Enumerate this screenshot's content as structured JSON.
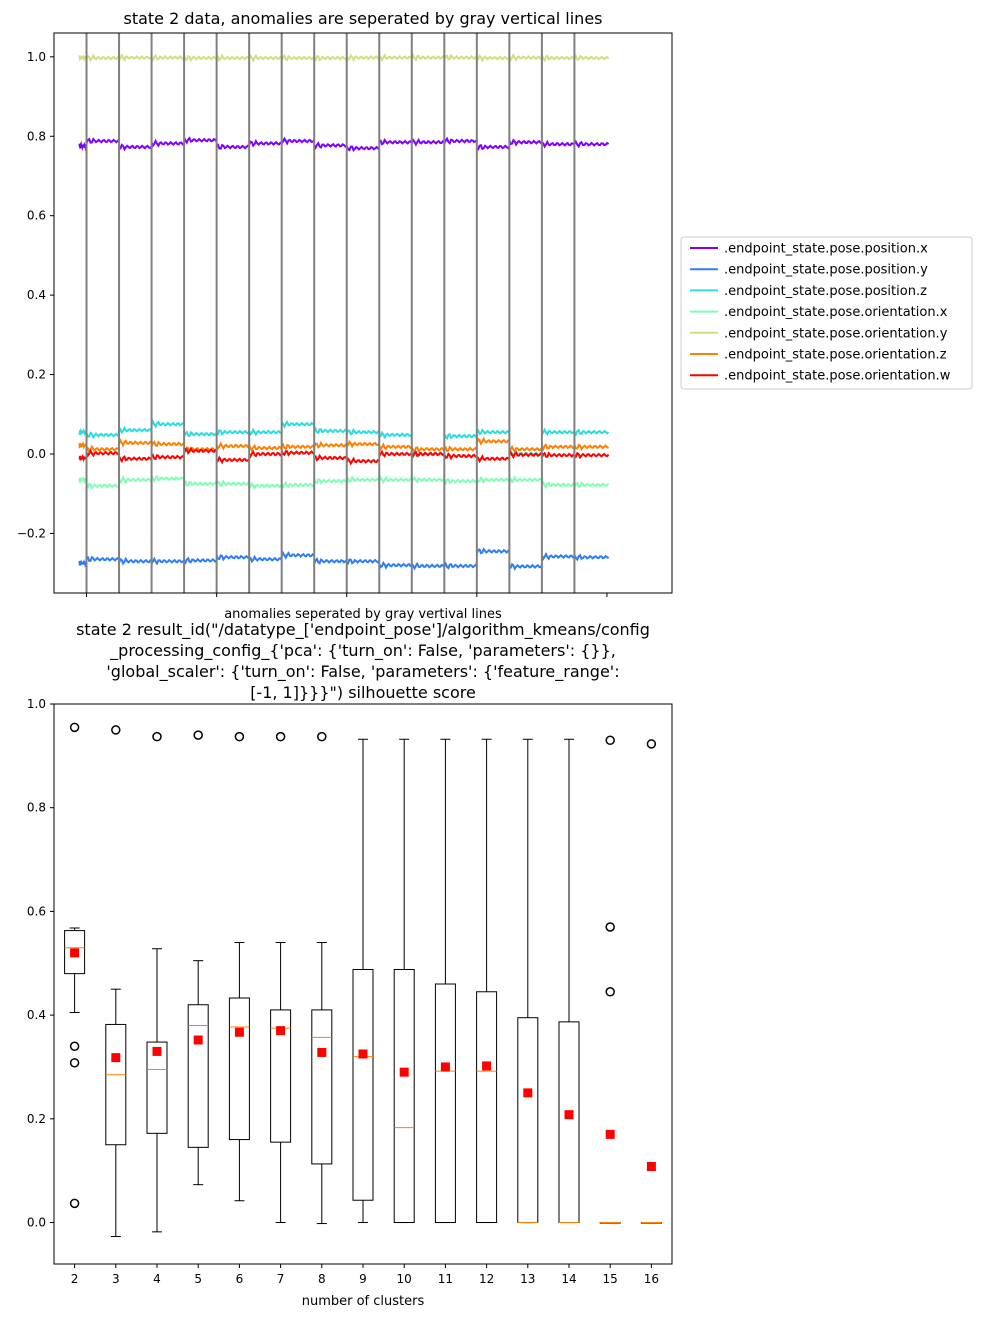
{
  "chart_data": [
    {
      "type": "line",
      "title": "state 2 data, anomalies are seperated by gray vertical lines",
      "xlabel": "anomalies seperated by gray vertival lines",
      "ylabel": "",
      "ylim": [
        -0.35,
        1.06
      ],
      "yticks": [
        -0.2,
        0.0,
        0.2,
        0.4,
        0.6,
        0.8,
        1.0
      ],
      "ytick_labels": [
        "−0.2",
        "0.0",
        "0.2",
        "0.4",
        "0.6",
        "0.8",
        "1.0"
      ],
      "x_range": [
        0,
        19
      ],
      "xticks": [
        1,
        5,
        9,
        13,
        17
      ],
      "separators": [
        1,
        2,
        3,
        4,
        5,
        6,
        7,
        8,
        9,
        10,
        11,
        12,
        13,
        14,
        15,
        16
      ],
      "legend_position": "outside-right",
      "grid": false,
      "segment_bounds": [
        0.78,
        1,
        2,
        3,
        4,
        5,
        6,
        7,
        8,
        9,
        10,
        11,
        12,
        13,
        14,
        15,
        16,
        17.05
      ],
      "series": [
        {
          "name": ".endpoint_state.pose.position.x",
          "color": "#8000ff",
          "segments": [
            0.775,
            0.788,
            0.773,
            0.782,
            0.79,
            0.773,
            0.782,
            0.788,
            0.777,
            0.77,
            0.785,
            0.785,
            0.788,
            0.773,
            0.785,
            0.78,
            0.78
          ]
        },
        {
          "name": ".endpoint_state.pose.position.y",
          "color": "#2c7ef7",
          "segments": [
            -0.275,
            -0.265,
            -0.27,
            -0.27,
            -0.268,
            -0.26,
            -0.265,
            -0.255,
            -0.27,
            -0.27,
            -0.28,
            -0.282,
            -0.282,
            -0.245,
            -0.283,
            -0.258,
            -0.26
          ]
        },
        {
          "name": ".endpoint_state.pose.position.z",
          "color": "#2adddd",
          "segments": [
            0.055,
            0.048,
            0.06,
            0.075,
            0.05,
            0.055,
            0.055,
            0.075,
            0.058,
            0.055,
            0.048,
            0.0,
            0.045,
            0.055,
            0.0,
            0.055,
            0.055
          ]
        },
        {
          "name": ".endpoint_state.pose.orientation.x",
          "color": "#80ffb4",
          "segments": [
            -0.065,
            -0.08,
            -0.065,
            -0.062,
            -0.075,
            -0.075,
            -0.08,
            -0.078,
            -0.068,
            -0.065,
            -0.065,
            -0.065,
            -0.068,
            -0.065,
            -0.065,
            -0.078,
            -0.078
          ]
        },
        {
          "name": ".endpoint_state.pose.orientation.y",
          "color": "#d4dd80",
          "segments": [
            0.998,
            0.997,
            0.998,
            0.998,
            0.997,
            0.997,
            0.997,
            0.997,
            0.997,
            0.998,
            0.998,
            0.998,
            0.998,
            0.997,
            0.998,
            0.997,
            0.997
          ]
        },
        {
          "name": ".endpoint_state.pose.orientation.z",
          "color": "#ff8000",
          "segments": [
            0.022,
            0.012,
            0.028,
            0.025,
            0.012,
            0.02,
            0.015,
            0.018,
            0.022,
            0.025,
            0.018,
            0.012,
            0.012,
            0.032,
            0.012,
            0.018,
            0.018
          ]
        },
        {
          "name": ".endpoint_state.pose.orientation.w",
          "color": "#ff0000",
          "segments": [
            -0.01,
            0.002,
            -0.012,
            -0.008,
            0.008,
            -0.015,
            0.0,
            0.003,
            -0.01,
            -0.018,
            0.0,
            0.0,
            -0.005,
            -0.012,
            -0.002,
            -0.003,
            -0.003
          ]
        }
      ]
    },
    {
      "type": "box",
      "title_lines": [
        "state 2 result_id(\"/datatype_['endpoint_pose']/algorithm_kmeans/config",
        "_processing_config_{'pca': {'turn_on': False, 'parameters': {}},",
        "'global_scaler': {'turn_on': False, 'parameters': {'feature_range':",
        "[-1, 1]}}}\") silhouette score"
      ],
      "xlabel": "number of clusters",
      "ylabel": "",
      "ylim": [
        -0.08,
        1.0
      ],
      "yticks": [
        0.0,
        0.2,
        0.4,
        0.6,
        0.8,
        1.0
      ],
      "ytick_labels": [
        "0.0",
        "0.2",
        "0.4",
        "0.6",
        "0.8",
        "1.0"
      ],
      "categories": [
        "2",
        "3",
        "4",
        "5",
        "6",
        "7",
        "8",
        "9",
        "10",
        "11",
        "12",
        "13",
        "14",
        "15",
        "16"
      ],
      "box_color": "#000000",
      "median_color": "#ff8000",
      "mean_color": "#ff0000",
      "grid": false,
      "boxes": [
        {
          "whislo": 0.405,
          "q1": 0.48,
          "med": 0.53,
          "q3": 0.563,
          "whishi": 0.568,
          "mean": 0.52,
          "fliers": [
            0.955,
            0.34,
            0.308,
            0.037
          ]
        },
        {
          "whislo": -0.027,
          "q1": 0.15,
          "med": 0.285,
          "q3": 0.382,
          "whishi": 0.45,
          "mean": 0.318,
          "fliers": [
            0.95
          ]
        },
        {
          "whislo": -0.018,
          "q1": 0.172,
          "med": 0.295,
          "q3": 0.348,
          "whishi": 0.528,
          "mean": 0.33,
          "fliers": [
            0.937
          ]
        },
        {
          "whislo": 0.073,
          "q1": 0.145,
          "med": 0.38,
          "q3": 0.42,
          "whishi": 0.505,
          "mean": 0.352,
          "fliers": [
            0.94
          ]
        },
        {
          "whislo": 0.042,
          "q1": 0.16,
          "med": 0.377,
          "q3": 0.433,
          "whishi": 0.54,
          "mean": 0.367,
          "fliers": [
            0.937
          ]
        },
        {
          "whislo": 0.0,
          "q1": 0.155,
          "med": 0.375,
          "q3": 0.41,
          "whishi": 0.54,
          "mean": 0.37,
          "fliers": [
            0.937
          ]
        },
        {
          "whislo": -0.002,
          "q1": 0.113,
          "med": 0.357,
          "q3": 0.41,
          "whishi": 0.54,
          "mean": 0.328,
          "fliers": [
            0.937
          ]
        },
        {
          "whislo": 0.0,
          "q1": 0.043,
          "med": 0.32,
          "q3": 0.488,
          "whishi": 0.932,
          "mean": 0.325,
          "fliers": []
        },
        {
          "whislo": 0.0,
          "q1": 0.0,
          "med": 0.183,
          "q3": 0.488,
          "whishi": 0.932,
          "mean": 0.29,
          "fliers": []
        },
        {
          "whislo": 0.0,
          "q1": 0.0,
          "med": 0.292,
          "q3": 0.46,
          "whishi": 0.932,
          "mean": 0.3,
          "fliers": []
        },
        {
          "whislo": 0.0,
          "q1": 0.0,
          "med": 0.292,
          "q3": 0.445,
          "whishi": 0.932,
          "mean": 0.302,
          "fliers": []
        },
        {
          "whislo": 0.0,
          "q1": 0.0,
          "med": 0.0,
          "q3": 0.395,
          "whishi": 0.932,
          "mean": 0.25,
          "fliers": []
        },
        {
          "whislo": 0.0,
          "q1": 0.0,
          "med": 0.0,
          "q3": 0.387,
          "whishi": 0.932,
          "mean": 0.208,
          "fliers": []
        },
        {
          "whislo": 0.0,
          "q1": 0.0,
          "med": 0.0,
          "q3": 0.0,
          "whishi": 0.0,
          "mean": 0.17,
          "fliers": [
            0.93,
            0.57,
            0.445
          ]
        },
        {
          "whislo": 0.0,
          "q1": 0.0,
          "med": 0.0,
          "q3": 0.0,
          "whishi": 0.0,
          "mean": 0.108,
          "fliers": [
            0.923
          ]
        }
      ]
    }
  ]
}
